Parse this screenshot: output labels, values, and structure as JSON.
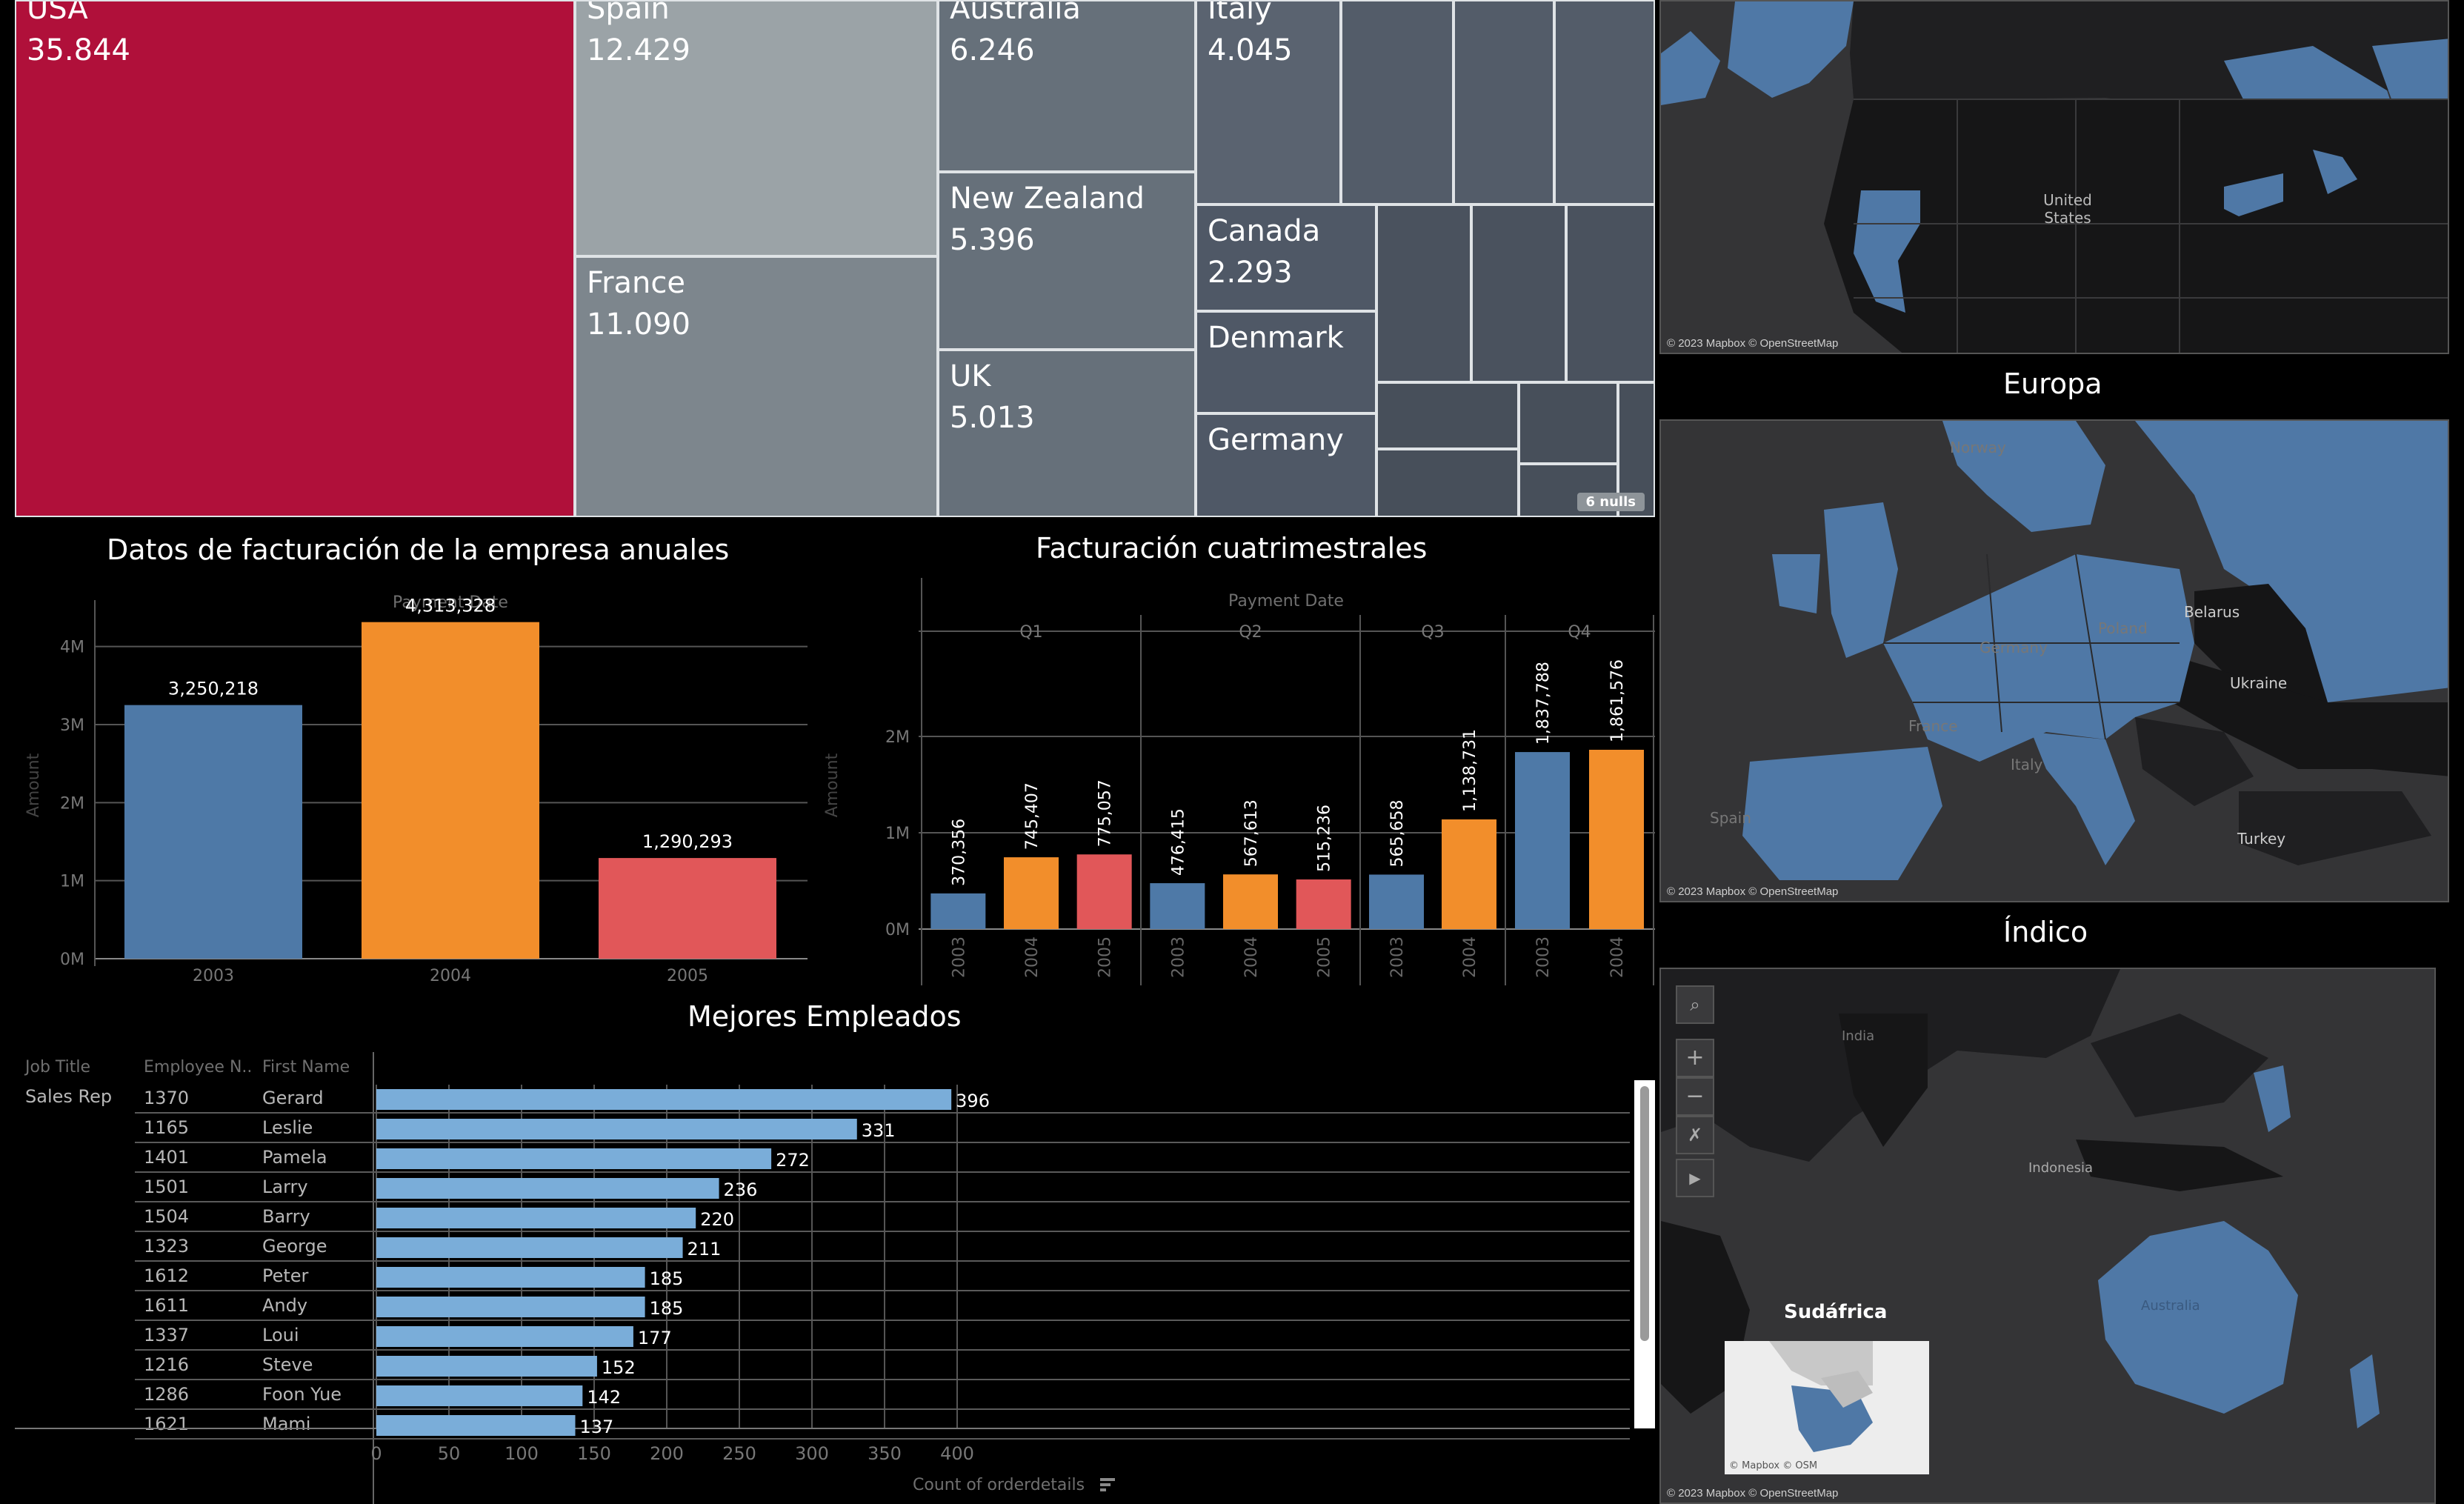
{
  "treemap": {
    "cells": [
      {
        "name": "USA",
        "value": "35.844"
      },
      {
        "name": "Spain",
        "value": "12.429"
      },
      {
        "name": "Australia",
        "value": "6.246"
      },
      {
        "name": "Italy",
        "value": "4.045"
      },
      {
        "name": "France",
        "value": "11.090"
      },
      {
        "name": "New Zealand",
        "value": "5.396"
      },
      {
        "name": "Canada",
        "value": "2.293"
      },
      {
        "name": "UK",
        "value": "5.013"
      },
      {
        "name": "Denmark",
        "value": ""
      },
      {
        "name": "Germany",
        "value": ""
      }
    ],
    "nulls_badge": "6 nulls"
  },
  "annual": {
    "title": "Datos de facturación de la empresa anuales",
    "header": "Payment Date",
    "ylabel": "Amount"
  },
  "quarterly": {
    "title": "Facturación cuatrimestrales",
    "header": "Payment Date",
    "ylabel": "Amount"
  },
  "employees": {
    "title": "Mejores Empleados",
    "columns": {
      "job": "Job Title",
      "number": "Employee N..",
      "name": "First Name"
    },
    "job_title": "Sales Rep",
    "xlabel": "Count of orderdetails",
    "sort_icon": "sort-descending-icon"
  },
  "maps": {
    "north_america": {
      "label_us": "United States",
      "credit": "© 2023 Mapbox © OpenStreetMap"
    },
    "europe": {
      "title": "Europa",
      "labels": [
        "Norway",
        "Poland",
        "Belarus",
        "Germany",
        "Ukraine",
        "France",
        "Italy",
        "Spain",
        "Turkey"
      ],
      "credit": "© 2023 Mapbox © OpenStreetMap"
    },
    "indico": {
      "title": "Índico",
      "labels": [
        "India",
        "Indonesia",
        "Australia"
      ],
      "credit": "© 2023 Mapbox © OpenStreetMap",
      "inset_title": "Sudáfrica",
      "inset_credit": "© Mapbox © OSM",
      "tools": {
        "search": "search-icon",
        "zoom_in": "+",
        "zoom_out": "−",
        "pin": "pin-icon",
        "play": "play-icon"
      }
    }
  },
  "colors": {
    "usa": "#b0103a",
    "spain": "#9ba3a7",
    "blue": "#4e79a7",
    "orange": "#f28e2b",
    "red": "#e15759",
    "light_blue": "#7aadd9",
    "map_blue": "#4f78a6"
  },
  "chart_data": [
    {
      "type": "bar",
      "title": "Datos de facturación de la empresa anuales",
      "xlabel": "Payment Date",
      "ylabel": "Amount",
      "categories": [
        "2003",
        "2004",
        "2005"
      ],
      "values": [
        3250218,
        4313328,
        1290293
      ],
      "value_labels": [
        "3,250,218",
        "4,313,328",
        "1,290,293"
      ],
      "yticks": [
        "0M",
        "1M",
        "2M",
        "3M",
        "4M"
      ],
      "ylim": [
        0,
        4500000
      ]
    },
    {
      "type": "bar",
      "title": "Facturación cuatrimestrales",
      "xlabel": "Payment Date",
      "ylabel": "Amount",
      "groups": [
        {
          "quarter": "Q1",
          "years": [
            "2003",
            "2004",
            "2005"
          ],
          "values": [
            370356,
            745407,
            775057
          ],
          "labels": [
            "370,356",
            "745,407",
            "775,057"
          ]
        },
        {
          "quarter": "Q2",
          "years": [
            "2003",
            "2004",
            "2005"
          ],
          "values": [
            476415,
            567613,
            515236
          ],
          "labels": [
            "476,415",
            "567,613",
            "515,236"
          ]
        },
        {
          "quarter": "Q3",
          "years": [
            "2003",
            "2004"
          ],
          "values": [
            565658,
            1138731
          ],
          "labels": [
            "565,658",
            "1,138,731"
          ]
        },
        {
          "quarter": "Q4",
          "years": [
            "2003",
            "2004"
          ],
          "values": [
            1837788,
            1861576
          ],
          "labels": [
            "1,837,788",
            "1,861,576"
          ]
        }
      ],
      "yticks": [
        "0M",
        "1M",
        "2M"
      ],
      "ylim": [
        0,
        2600000
      ]
    },
    {
      "type": "bar",
      "title": "Mejores Empleados",
      "xlabel": "Count of orderdetails",
      "rows": [
        {
          "id": "1370",
          "name": "Gerard",
          "value": 396
        },
        {
          "id": "1165",
          "name": "Leslie",
          "value": 331
        },
        {
          "id": "1401",
          "name": "Pamela",
          "value": 272
        },
        {
          "id": "1501",
          "name": "Larry",
          "value": 236
        },
        {
          "id": "1504",
          "name": "Barry",
          "value": 220
        },
        {
          "id": "1323",
          "name": "George",
          "value": 211
        },
        {
          "id": "1612",
          "name": "Peter",
          "value": 185
        },
        {
          "id": "1611",
          "name": "Andy",
          "value": 185
        },
        {
          "id": "1337",
          "name": "Loui",
          "value": 177
        },
        {
          "id": "1216",
          "name": "Steve",
          "value": 152
        },
        {
          "id": "1286",
          "name": "Foon Yue",
          "value": 142
        },
        {
          "id": "1621",
          "name": "Mami",
          "value": 137
        }
      ],
      "xticks": [
        "0",
        "50",
        "100",
        "150",
        "200",
        "250",
        "300",
        "350",
        "400"
      ],
      "xlim": [
        0,
        420
      ]
    }
  ]
}
